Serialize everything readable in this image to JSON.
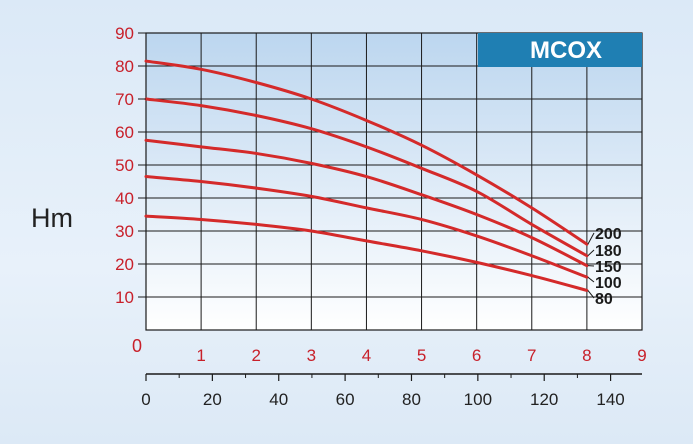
{
  "chart_data": {
    "type": "line",
    "title": "MCOX",
    "ylabel": "Hm",
    "xlabel": "",
    "primary_x_ticks": [
      "0",
      "1",
      "2",
      "3",
      "4",
      "5",
      "6",
      "7",
      "8",
      "9"
    ],
    "secondary_x_ticks": [
      "0",
      "20",
      "40",
      "60",
      "80",
      "100",
      "120",
      "140"
    ],
    "y_ticks": [
      "0",
      "10",
      "20",
      "30",
      "40",
      "50",
      "60",
      "70",
      "80",
      "90"
    ],
    "xlim": [
      0,
      9
    ],
    "ylim": [
      0,
      90
    ],
    "grid": true,
    "series": [
      {
        "name": "200",
        "x": [
          0,
          1,
          2,
          3,
          4,
          5,
          6,
          7,
          8
        ],
        "values": [
          81.5,
          79,
          75,
          70,
          63.5,
          56,
          47,
          37,
          26
        ]
      },
      {
        "name": "180",
        "x": [
          0,
          1,
          2,
          3,
          4,
          5,
          6,
          7,
          8
        ],
        "values": [
          70,
          68,
          65,
          61,
          55.5,
          49,
          42,
          32,
          22.5
        ]
      },
      {
        "name": "150",
        "x": [
          0,
          1,
          2,
          3,
          4,
          5,
          6,
          7,
          8
        ],
        "values": [
          57.5,
          55.5,
          53.5,
          50.5,
          46.5,
          41,
          35,
          28,
          19.5
        ]
      },
      {
        "name": "100",
        "x": [
          0,
          1,
          2,
          3,
          4,
          5,
          6,
          7,
          8
        ],
        "values": [
          46.5,
          45,
          43,
          40.5,
          37,
          33.5,
          28.5,
          22.5,
          16
        ]
      },
      {
        "name": "80",
        "x": [
          0,
          1,
          2,
          3,
          4,
          5,
          6,
          7,
          8
        ],
        "values": [
          34.5,
          33.5,
          32,
          30,
          27,
          24,
          20.5,
          16.5,
          12
        ]
      }
    ],
    "colors": {
      "curve": "#d42a2a",
      "tick_label_red": "#c8202a",
      "badge_bg": "#1f7fb3",
      "badge_text": "#ffffff",
      "grid": "#1a1a1a",
      "plot_top": "#bcd6ef",
      "plot_bottom": "#ffffff"
    }
  }
}
